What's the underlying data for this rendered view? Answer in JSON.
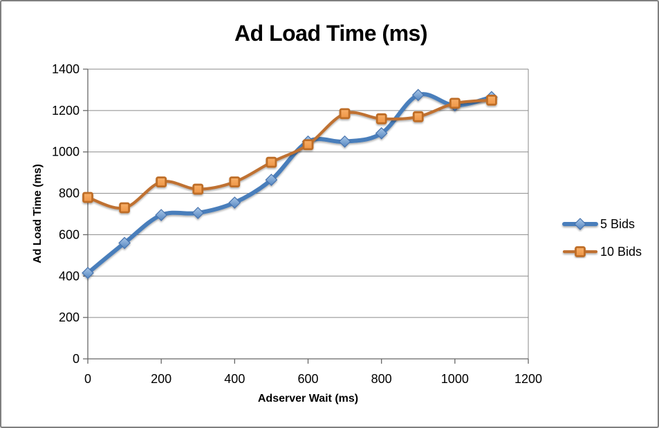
{
  "window": {
    "background": "#ffffff",
    "border_color": "#7f7f7f"
  },
  "chart_data": {
    "type": "line",
    "title": "Ad Load Time (ms)",
    "xlabel": "Adserver Wait (ms)",
    "ylabel": "Ad Load Time (ms)",
    "x": [
      0,
      100,
      200,
      300,
      400,
      500,
      600,
      700,
      800,
      900,
      1000,
      1100
    ],
    "series": [
      {
        "name": "5 Bids",
        "marker": "diamond",
        "line_color": "#4A7EBB",
        "marker_fill_top": "#A9C7E8",
        "marker_fill_bottom": "#5586C0",
        "marker_stroke": "#4673AE",
        "values": [
          415,
          560,
          695,
          705,
          755,
          865,
          1050,
          1050,
          1090,
          1275,
          1225,
          1265
        ]
      },
      {
        "name": "10 Bids",
        "marker": "square",
        "line_color": "#BF7130",
        "marker_fill_top": "#F8B069",
        "marker_fill_bottom": "#EE9546",
        "marker_stroke": "#BE6D28",
        "values": [
          780,
          730,
          855,
          820,
          855,
          950,
          1035,
          1185,
          1160,
          1170,
          1235,
          1250
        ]
      }
    ],
    "xlim": [
      0,
      1200
    ],
    "ylim": [
      0,
      1400
    ],
    "x_ticks": [
      0,
      200,
      400,
      600,
      800,
      1000,
      1200
    ],
    "y_ticks": [
      0,
      200,
      400,
      600,
      800,
      1000,
      1200,
      1400
    ],
    "grid": "horizontal",
    "grid_color": "#8a8a8a",
    "axis_color": "#666666",
    "smoothed": true,
    "legend_position": "right"
  }
}
